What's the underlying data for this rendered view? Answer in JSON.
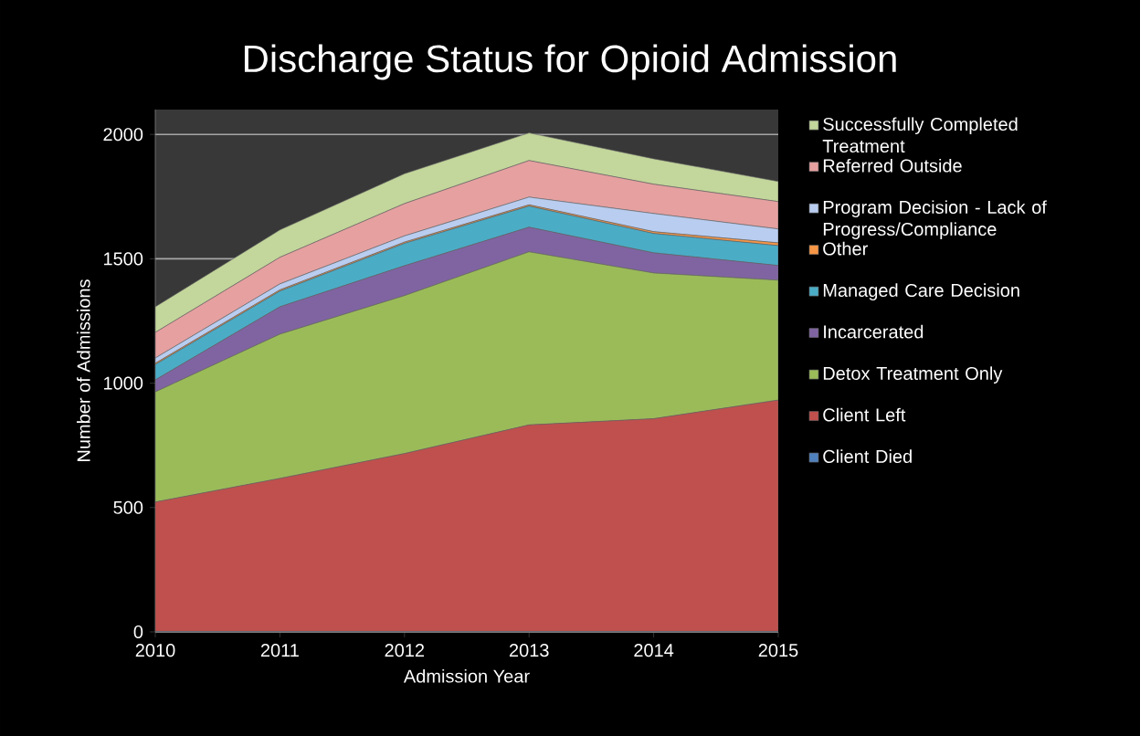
{
  "chart_data": {
    "type": "area",
    "title": "Discharge Status for Opioid Admission",
    "xlabel": "Admission Year",
    "ylabel": "Number of Admissions",
    "x": [
      2010,
      2011,
      2012,
      2013,
      2014,
      2015
    ],
    "xlim": [
      2010,
      2015
    ],
    "xticks": [
      2010,
      2011,
      2012,
      2013,
      2014,
      2015
    ],
    "ylim": [
      0,
      2100
    ],
    "yticks": [
      0,
      500,
      1000,
      1500,
      2000
    ],
    "stacked": true,
    "grid": "y",
    "legend": "right",
    "series": [
      {
        "name": "Client Died",
        "color": "#4f81bd",
        "values": [
          2,
          2,
          2,
          2,
          2,
          2
        ]
      },
      {
        "name": "Client Left",
        "color": "#c0504d",
        "values": [
          520,
          615,
          715,
          830,
          855,
          930
        ]
      },
      {
        "name": "Detox Treatment Only",
        "color": "#9bbb59",
        "values": [
          443,
          580,
          635,
          696,
          586,
          482
        ]
      },
      {
        "name": "Incarcerated",
        "color": "#8064a2",
        "values": [
          48,
          110,
          120,
          99,
          81,
          59
        ]
      },
      {
        "name": "Managed Care Decision",
        "color": "#4bacc6",
        "values": [
          62,
          63,
          90,
          85,
          78,
          80
        ]
      },
      {
        "name": "Other",
        "color": "#f79646",
        "values": [
          5,
          5,
          5,
          5,
          7,
          11
        ]
      },
      {
        "name": "Program Decision - Lack of Progress/Compliance",
        "color": "#b9cdf0",
        "values": [
          21,
          24,
          25,
          31,
          73,
          56
        ]
      },
      {
        "name": "Referred Outside",
        "color": "#e6a0a0",
        "values": [
          103,
          107,
          130,
          147,
          118,
          110
        ]
      },
      {
        "name": "Successfully Completed Treatment",
        "color": "#c3d69b",
        "values": [
          103,
          110,
          120,
          111,
          102,
          81
        ]
      }
    ]
  }
}
